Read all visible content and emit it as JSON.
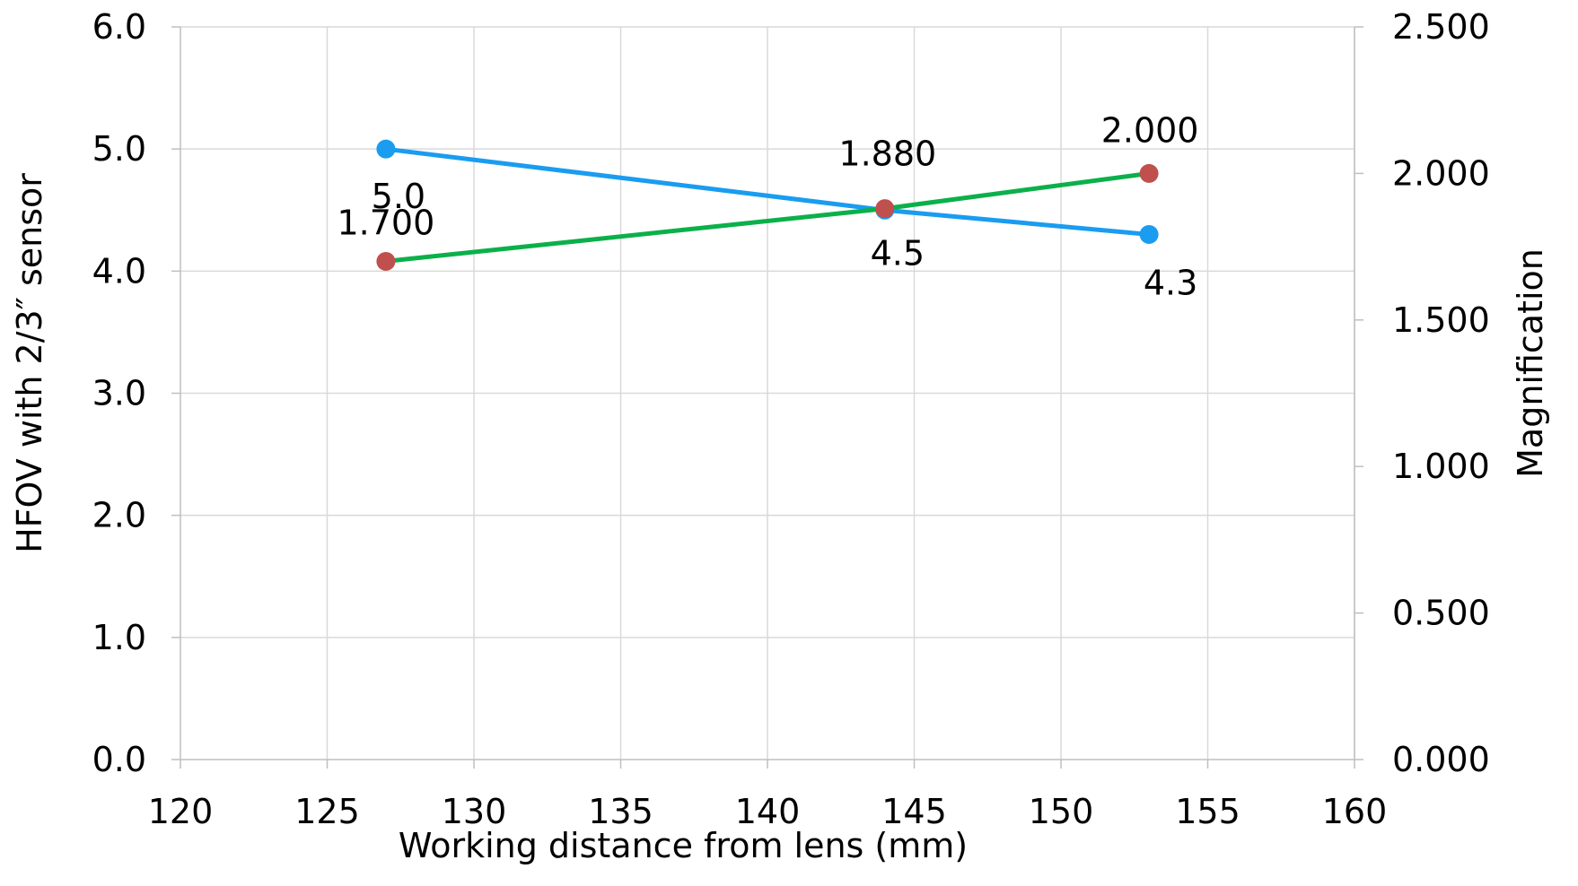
{
  "chart_data": {
    "type": "line",
    "xlabel": "Working distance from lens (mm)",
    "ylabel": "HFOV with 2/3″ sensor",
    "y2label": "Magnification",
    "xlim": [
      120,
      160
    ],
    "ylim": [
      0,
      6
    ],
    "y2lim": [
      0,
      2.5
    ],
    "x_ticks": [
      "120",
      "125",
      "130",
      "135",
      "140",
      "145",
      "150",
      "155",
      "160"
    ],
    "y_ticks": [
      "0.0",
      "1.0",
      "2.0",
      "3.0",
      "4.0",
      "5.0",
      "6.0"
    ],
    "y2_ticks": [
      "0.000",
      "0.500",
      "1.000",
      "1.500",
      "2.000",
      "2.500"
    ],
    "grid": true,
    "legend": "none",
    "series": [
      {
        "axis": "left",
        "color": "#1a9cf0",
        "marker_color": "#1a9cf0",
        "x": [
          127,
          144,
          153
        ],
        "values": [
          5.0,
          4.5,
          4.3
        ],
        "labels": [
          "5.0",
          "4.5",
          "4.3"
        ]
      },
      {
        "axis": "right",
        "color": "#0bb04a",
        "marker_color": "#c0504d",
        "x": [
          127,
          144,
          153
        ],
        "values": [
          1.7,
          1.88,
          2.0
        ],
        "labels": [
          "1.700",
          "1.880",
          "2.000"
        ]
      }
    ]
  }
}
